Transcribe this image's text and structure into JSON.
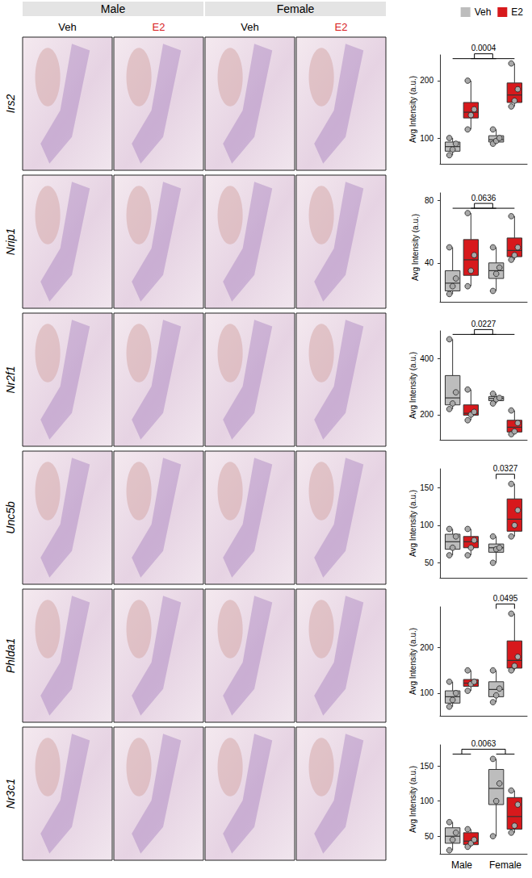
{
  "image_header": {
    "groups": [
      {
        "label": "Male",
        "columns": [
          {
            "label": "Veh",
            "color": "#000000"
          },
          {
            "label": "E2",
            "color": "#d7191c"
          }
        ]
      },
      {
        "label": "Female",
        "columns": [
          {
            "label": "Veh",
            "color": "#000000"
          },
          {
            "label": "E2",
            "color": "#d7191c"
          }
        ]
      }
    ]
  },
  "chart_data": [
    {
      "type": "boxplot",
      "title": "Irs2",
      "ylabel": "Avg Intensity (a.u.)",
      "categories": [
        "Male",
        "Female"
      ],
      "ylim": [
        55,
        245
      ],
      "yticks": [
        100,
        200
      ],
      "grid": false,
      "tick_labels": "y",
      "legend": "upper right",
      "series": [
        {
          "name": "Veh",
          "color": "#bdbdbd",
          "values": [
            [
              70,
              77,
              85,
              93,
              100
            ],
            [
              90,
              93,
              97,
              104,
              115
            ]
          ],
          "points": [
            [
              70,
              80,
              90,
              100
            ],
            [
              90,
              95,
              100,
              115
            ]
          ]
        },
        {
          "name": "E2",
          "color": "#d7191c",
          "values": [
            [
              115,
              135,
              145,
              162,
              200
            ],
            [
              155,
              162,
              175,
              196,
              230
            ]
          ],
          "points": [
            [
              115,
              140,
              150,
              200
            ],
            [
              155,
              165,
              185,
              230
            ]
          ]
        }
      ],
      "annotations": [
        {
          "text": "0.0004",
          "between": [
            [
              "Veh"
            ],
            [
              "E2"
            ]
          ]
        }
      ]
    },
    {
      "type": "boxplot",
      "title": "Nrip1",
      "ylabel": "Avg Intensity (a.u.)",
      "categories": [
        "Male",
        "Female"
      ],
      "ylim": [
        15,
        85
      ],
      "yticks": [
        40,
        80
      ],
      "grid": false,
      "tick_labels": "y",
      "series": [
        {
          "name": "Veh",
          "color": "#bdbdbd",
          "values": [
            [
              20,
              22,
              27,
              35,
              50
            ],
            [
              22,
              30,
              35,
              40,
              50
            ]
          ],
          "points": [
            [
              20,
              25,
              30,
              50
            ],
            [
              22,
              33,
              37,
              50
            ]
          ]
        },
        {
          "name": "E2",
          "color": "#d7191c",
          "values": [
            [
              25,
              32,
              42,
              55,
              72
            ],
            [
              42,
              44,
              48,
              56,
              70
            ]
          ],
          "points": [
            [
              25,
              35,
              45,
              72
            ],
            [
              42,
              45,
              50,
              70
            ]
          ]
        }
      ],
      "annotations": [
        {
          "text": "0.0636",
          "between": [
            [
              "Veh"
            ],
            [
              "E2"
            ]
          ]
        }
      ]
    },
    {
      "type": "boxplot",
      "title": "Nr2f1",
      "ylabel": "Avg Intensity (a.u.)",
      "categories": [
        "Male",
        "Female"
      ],
      "ylim": [
        110,
        500
      ],
      "yticks": [
        200,
        400
      ],
      "grid": false,
      "tick_labels": "y",
      "series": [
        {
          "name": "Veh",
          "color": "#bdbdbd",
          "values": [
            [
              220,
              235,
              260,
              340,
              470
            ],
            [
              240,
              250,
              258,
              265,
              275
            ]
          ],
          "points": [
            [
              220,
              240,
              280,
              470
            ],
            [
              240,
              255,
              260,
              275
            ]
          ]
        },
        {
          "name": "E2",
          "color": "#d7191c",
          "values": [
            [
              180,
              198,
              205,
              235,
              290
            ],
            [
              130,
              138,
              155,
              180,
              215
            ]
          ],
          "points": [
            [
              180,
              200,
              210,
              290
            ],
            [
              130,
              140,
              170,
              215
            ]
          ]
        }
      ],
      "annotations": [
        {
          "text": "0.0227",
          "between": [
            [
              "Veh"
            ],
            [
              "E2"
            ]
          ]
        }
      ]
    },
    {
      "type": "boxplot",
      "title": "Unc5b",
      "ylabel": "Avg Intensity (a.u.)",
      "categories": [
        "Male",
        "Female"
      ],
      "ylim": [
        30,
        175
      ],
      "yticks": [
        50,
        100,
        150
      ],
      "grid": false,
      "tick_labels": "y",
      "series": [
        {
          "name": "Veh",
          "color": "#bdbdbd",
          "values": [
            [
              60,
              68,
              78,
              88,
              95
            ],
            [
              50,
              64,
              70,
              75,
              85
            ]
          ],
          "points": [
            [
              60,
              70,
              85,
              95
            ],
            [
              50,
              68,
              70,
              85
            ]
          ]
        },
        {
          "name": "E2",
          "color": "#d7191c",
          "values": [
            [
              60,
              70,
              78,
              85,
              95
            ],
            [
              85,
              92,
              108,
              135,
              155
            ]
          ],
          "points": [
            [
              60,
              70,
              80,
              95
            ],
            [
              85,
              100,
              120,
              155
            ]
          ]
        }
      ],
      "annotations": [
        {
          "text": "0.0327",
          "between": [
            [
              "Female",
              "Veh"
            ],
            [
              "Female",
              "E2"
            ]
          ]
        }
      ]
    },
    {
      "type": "boxplot",
      "title": "Phlda1",
      "ylabel": "Avg Intensity (a.u.)",
      "categories": [
        "Male",
        "Female"
      ],
      "ylim": [
        50,
        290
      ],
      "yticks": [
        100,
        200
      ],
      "grid": false,
      "tick_labels": "y",
      "series": [
        {
          "name": "Veh",
          "color": "#bdbdbd",
          "values": [
            [
              70,
              78,
              92,
              105,
              125
            ],
            [
              80,
              92,
              108,
              125,
              150
            ]
          ],
          "points": [
            [
              70,
              85,
              100,
              125
            ],
            [
              80,
              95,
              110,
              150
            ]
          ]
        },
        {
          "name": "E2",
          "color": "#d7191c",
          "values": [
            [
              105,
              115,
              122,
              130,
              150
            ],
            [
              150,
              155,
              172,
              215,
              275
            ]
          ],
          "points": [
            [
              105,
              120,
              125,
              150
            ],
            [
              150,
              160,
              180,
              275
            ]
          ]
        }
      ],
      "annotations": [
        {
          "text": "0.0495",
          "between": [
            [
              "Female",
              "Veh"
            ],
            [
              "Female",
              "E2"
            ]
          ]
        }
      ]
    },
    {
      "type": "boxplot",
      "title": "Nr3c1",
      "ylabel": "Avg Intensity (a.u.)",
      "categories": [
        "Male",
        "Female"
      ],
      "ylim": [
        25,
        180
      ],
      "yticks": [
        50,
        100,
        150
      ],
      "grid": false,
      "tick_labels": true,
      "series": [
        {
          "name": "Veh",
          "color": "#bdbdbd",
          "values": [
            [
              30,
              40,
              50,
              62,
              70
            ],
            [
              50,
              95,
              118,
              145,
              160
            ]
          ],
          "points": [
            [
              30,
              45,
              55,
              70
            ],
            [
              50,
              100,
              125,
              160
            ]
          ]
        },
        {
          "name": "E2",
          "color": "#d7191c",
          "values": [
            [
              35,
              38,
              43,
              55,
              60
            ],
            [
              55,
              60,
              78,
              105,
              115
            ]
          ],
          "points": [
            [
              35,
              40,
              45,
              60
            ],
            [
              55,
              65,
              95,
              115
            ]
          ]
        }
      ],
      "annotations": [
        {
          "text": "0.0063",
          "between": [
            [
              "Male"
            ],
            [
              "Female"
            ]
          ]
        }
      ]
    }
  ]
}
